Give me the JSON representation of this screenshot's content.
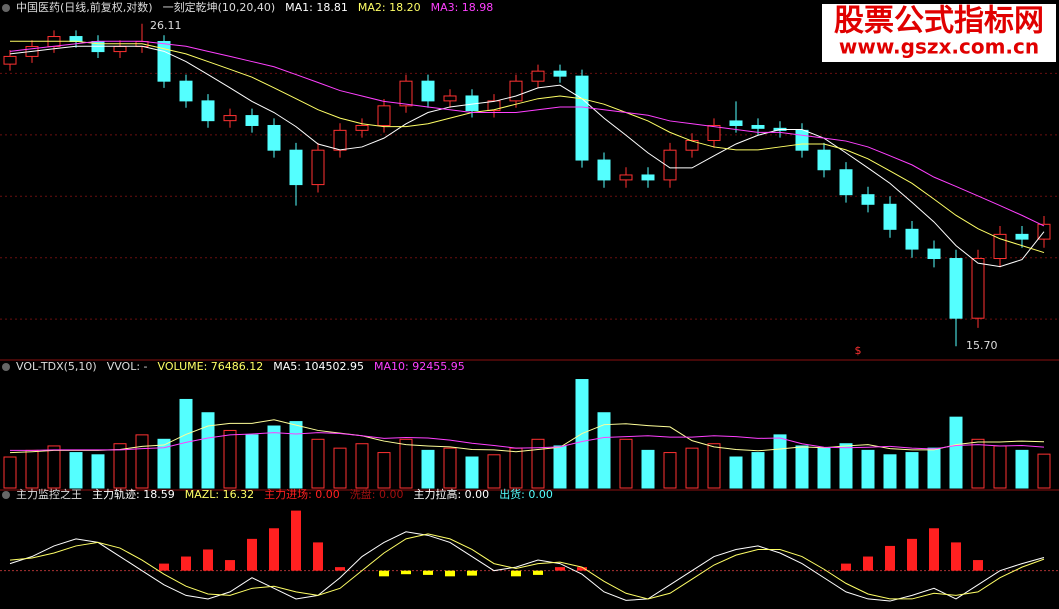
{
  "chart_data": [
    {
      "type": "candlestick",
      "legend": [
        {
          "text": "中国医药(日线,前复权,对数)",
          "color": "#dddddd"
        },
        {
          "text": "一刻定乾坤(10,20,40)",
          "color": "#dddddd"
        },
        {
          "text": "MA1: 18.81",
          "color": "#ffffff"
        },
        {
          "text": "MA2: 18.20",
          "color": "#ffff66"
        },
        {
          "text": "MA3: 18.98",
          "color": "#ff40ff"
        }
      ],
      "open": [
        24.5,
        24.8,
        25.19,
        25.59,
        25.39,
        24.99,
        25.19,
        25.39,
        23.85,
        23.12,
        22.41,
        22.59,
        22.24,
        21.39,
        20.26,
        21.39,
        22.07,
        22.24,
        22.94,
        23.85,
        23.12,
        23.3,
        22.77,
        23.12,
        23.85,
        24.23,
        24.04,
        21.06,
        20.41,
        20.57,
        20.41,
        21.39,
        21.72,
        22.4,
        22.24,
        22.14,
        22.07,
        21.39,
        20.74,
        19.94,
        19.64,
        18.88,
        18.3,
        18.03,
        16.41,
        18.03,
        18.73,
        18.59
      ],
      "high": [
        25.05,
        25.44,
        25.84,
        25.84,
        25.64,
        25.44,
        26.11,
        25.64,
        24.1,
        23.37,
        22.84,
        22.84,
        22.49,
        21.64,
        21.64,
        22.32,
        22.49,
        23.19,
        24.1,
        24.1,
        23.55,
        23.55,
        23.37,
        24.1,
        24.48,
        24.48,
        24.29,
        21.31,
        20.82,
        20.82,
        21.64,
        21.97,
        22.49,
        23.1,
        22.49,
        22.39,
        22.32,
        21.64,
        20.99,
        20.19,
        19.89,
        19.13,
        18.55,
        18.28,
        18.28,
        18.98,
        18.98,
        19.28
      ],
      "low": [
        24.25,
        24.55,
        24.94,
        25.14,
        24.74,
        24.74,
        24.94,
        23.6,
        22.87,
        22.16,
        22.16,
        21.99,
        21.14,
        19.6,
        20.01,
        21.14,
        21.82,
        21.99,
        22.69,
        22.87,
        22.87,
        22.52,
        22.52,
        22.87,
        23.6,
        23.79,
        20.81,
        20.16,
        20.16,
        20.16,
        20.16,
        21.14,
        21.47,
        21.99,
        21.89,
        21.82,
        21.14,
        20.49,
        19.69,
        19.39,
        18.63,
        18.05,
        17.78,
        15.7,
        16.16,
        17.78,
        18.34,
        18.34
      ],
      "close": [
        24.8,
        25.19,
        25.59,
        25.39,
        24.99,
        25.19,
        25.39,
        23.85,
        23.12,
        22.41,
        22.59,
        22.24,
        21.39,
        20.26,
        21.39,
        22.07,
        22.24,
        22.94,
        23.85,
        23.12,
        23.3,
        22.77,
        23.12,
        23.85,
        24.23,
        24.04,
        21.06,
        20.41,
        20.57,
        20.41,
        21.39,
        21.72,
        22.24,
        22.24,
        22.14,
        22.07,
        21.39,
        20.74,
        19.94,
        19.64,
        18.88,
        18.3,
        18.03,
        16.41,
        18.03,
        18.73,
        18.59,
        19.03
      ],
      "up_color": "#ff3232",
      "down_color": "#54ffff",
      "lines": [
        {
          "color": "#ffffff",
          "values": [
            24.9,
            25.0,
            25.1,
            25.2,
            25.2,
            25.2,
            25.2,
            25.0,
            24.6,
            24.1,
            23.6,
            23.1,
            22.7,
            22.2,
            21.6,
            21.4,
            21.5,
            21.8,
            22.3,
            22.7,
            22.9,
            23.0,
            23.1,
            23.3,
            23.6,
            23.7,
            23.2,
            22.5,
            21.9,
            21.3,
            20.8,
            20.8,
            21.2,
            21.6,
            21.9,
            22.1,
            22.1,
            21.8,
            21.3,
            20.8,
            20.3,
            19.7,
            19.1,
            18.4,
            17.9,
            17.8,
            18.0,
            18.81
          ]
        },
        {
          "color": "#ffff66",
          "values": [
            25.4,
            25.4,
            25.4,
            25.4,
            25.3,
            25.3,
            25.3,
            25.1,
            24.9,
            24.6,
            24.3,
            24.0,
            23.6,
            23.2,
            22.8,
            22.5,
            22.3,
            22.2,
            22.2,
            22.3,
            22.5,
            22.7,
            22.8,
            23.0,
            23.2,
            23.3,
            23.2,
            23.0,
            22.7,
            22.4,
            22.0,
            21.7,
            21.5,
            21.4,
            21.4,
            21.5,
            21.6,
            21.6,
            21.4,
            21.1,
            20.7,
            20.3,
            19.8,
            19.3,
            18.9,
            18.6,
            18.4,
            18.2
          ]
        },
        {
          "color": "#ff40ff",
          "values": [
            25.0,
            25.1,
            25.2,
            25.3,
            25.4,
            25.4,
            25.4,
            25.3,
            25.2,
            25.0,
            24.8,
            24.6,
            24.4,
            24.1,
            23.8,
            23.5,
            23.3,
            23.1,
            23.0,
            22.9,
            22.8,
            22.7,
            22.7,
            22.7,
            22.8,
            22.9,
            22.9,
            22.8,
            22.7,
            22.6,
            22.4,
            22.3,
            22.2,
            22.1,
            22.0,
            22.0,
            21.9,
            21.8,
            21.7,
            21.5,
            21.2,
            20.9,
            20.5,
            20.2,
            19.9,
            19.6,
            19.3,
            18.98
          ]
        }
      ],
      "annotations": [
        "26.11",
        "15.70"
      ],
      "signal": "$",
      "ylim": [
        15.46,
        26.6
      ],
      "log_scale": true,
      "grid": true
    },
    {
      "type": "volume",
      "legend": [
        {
          "text": "VOL-TDX(5,10)",
          "color": "#dddddd"
        },
        {
          "text": "VVOL: -",
          "color": "#dddddd"
        },
        {
          "text": "VOLUME: 76486.12",
          "color": "#ffff66"
        },
        {
          "text": "MA5: 104502.95",
          "color": "#ffffff"
        },
        {
          "text": "MA10: 92455.95",
          "color": "#ff40ff"
        }
      ],
      "values": [
        70000,
        85000,
        95000,
        80000,
        75000,
        100000,
        120000,
        110000,
        200000,
        170000,
        130000,
        120000,
        140000,
        150000,
        110000,
        90000,
        100000,
        80000,
        110000,
        85000,
        90000,
        70000,
        75000,
        90000,
        110000,
        95000,
        245000,
        170000,
        110000,
        85000,
        80000,
        90000,
        100000,
        70000,
        80000,
        120000,
        95000,
        90000,
        100000,
        85000,
        75000,
        80000,
        90000,
        160000,
        110000,
        95000,
        85000,
        76486.12
      ],
      "lines": [
        {
          "color": "#ffff99",
          "values": [
            80000,
            82000,
            85000,
            85000,
            85000,
            87000,
            94000,
            97000,
            121000,
            140000,
            146000,
            146000,
            154000,
            142000,
            130000,
            124000,
            118000,
            106000,
            98000,
            95000,
            93000,
            87000,
            86000,
            82000,
            87000,
            92000,
            123000,
            143000,
            145000,
            141000,
            138000,
            107000,
            93000,
            87000,
            84000,
            88000,
            93000,
            91000,
            95000,
            98000,
            89000,
            86000,
            86000,
            98000,
            104000,
            104000,
            106000,
            104502.95
          ]
        },
        {
          "color": "#ff40ff",
          "values": [
            85000,
            85000,
            86000,
            86000,
            86000,
            86000,
            89000,
            91000,
            103000,
            113000,
            120000,
            122000,
            125000,
            122000,
            125000,
            123000,
            118000,
            112000,
            114000,
            113000,
            108000,
            101000,
            96000,
            90000,
            91000,
            93000,
            105000,
            114000,
            116000,
            118000,
            115000,
            115000,
            118000,
            116000,
            112000,
            113000,
            100000,
            92000,
            91000,
            92000,
            94000,
            90000,
            88000,
            96000,
            98000,
            95000,
            96000,
            92455.95
          ]
        }
      ],
      "ylim": [
        0,
        262000
      ]
    },
    {
      "type": "oscillator",
      "legend": [
        {
          "text": "主力监控之王",
          "color": "#dddddd"
        },
        {
          "text": "主力轨迹: 18.59",
          "color": "#ffffff"
        },
        {
          "text": "MAZL: 16.32",
          "color": "#ffff66"
        },
        {
          "text": "主力进场: 0.00",
          "color": "#ff2020"
        },
        {
          "text": "洗盘: 0.00",
          "color": "#a01010"
        },
        {
          "text": "主力拉高: 0.00",
          "color": "#ffffff"
        },
        {
          "text": "出货: 0.00",
          "color": "#54ffff"
        }
      ],
      "bars": [
        {
          "color": "#ff2020",
          "values": [
            0,
            0,
            0,
            0,
            0,
            0,
            0,
            10,
            20,
            30,
            15,
            45,
            60,
            85,
            40,
            5,
            0,
            0,
            0,
            0,
            0,
            0,
            0,
            0,
            0,
            5,
            5,
            0,
            0,
            0,
            0,
            0,
            0,
            0,
            0,
            0,
            0,
            0,
            10,
            20,
            35,
            45,
            60,
            40,
            15,
            0,
            0,
            0
          ]
        },
        {
          "color": "#ffff00",
          "values": [
            0,
            0,
            0,
            0,
            0,
            0,
            0,
            0,
            0,
            0,
            0,
            0,
            0,
            0,
            0,
            0,
            0,
            -8,
            -5,
            -6,
            -8,
            -7,
            0,
            -8,
            -6,
            0,
            0,
            0,
            0,
            0,
            0,
            0,
            0,
            0,
            0,
            0,
            0,
            0,
            0,
            0,
            0,
            0,
            0,
            0,
            0,
            0,
            0,
            0
          ]
        }
      ],
      "lines": [
        {
          "color": "#ffffff",
          "values": [
            10,
            20,
            35,
            45,
            40,
            20,
            0,
            -20,
            -35,
            -40,
            -30,
            -10,
            -25,
            -40,
            -35,
            -10,
            20,
            40,
            55,
            50,
            40,
            20,
            0,
            5,
            15,
            10,
            -5,
            -30,
            -42,
            -40,
            -20,
            0,
            20,
            30,
            35,
            25,
            10,
            -10,
            -30,
            -40,
            -43,
            -35,
            -25,
            -40,
            -20,
            0,
            10,
            18.59
          ]
        },
        {
          "color": "#ffff66",
          "values": [
            15,
            18,
            25,
            35,
            40,
            32,
            15,
            -5,
            -22,
            -33,
            -35,
            -25,
            -22,
            -30,
            -35,
            -25,
            0,
            25,
            45,
            52,
            45,
            30,
            10,
            3,
            10,
            12,
            5,
            -15,
            -32,
            -40,
            -32,
            -12,
            8,
            22,
            30,
            30,
            20,
            2,
            -18,
            -33,
            -40,
            -40,
            -32,
            -35,
            -30,
            -10,
            5,
            16.32
          ]
        }
      ],
      "ylim": [
        -50,
        100
      ]
    }
  ],
  "watermark": {
    "title": "股票公式指标网",
    "url": "www.gszx.com.cn"
  }
}
